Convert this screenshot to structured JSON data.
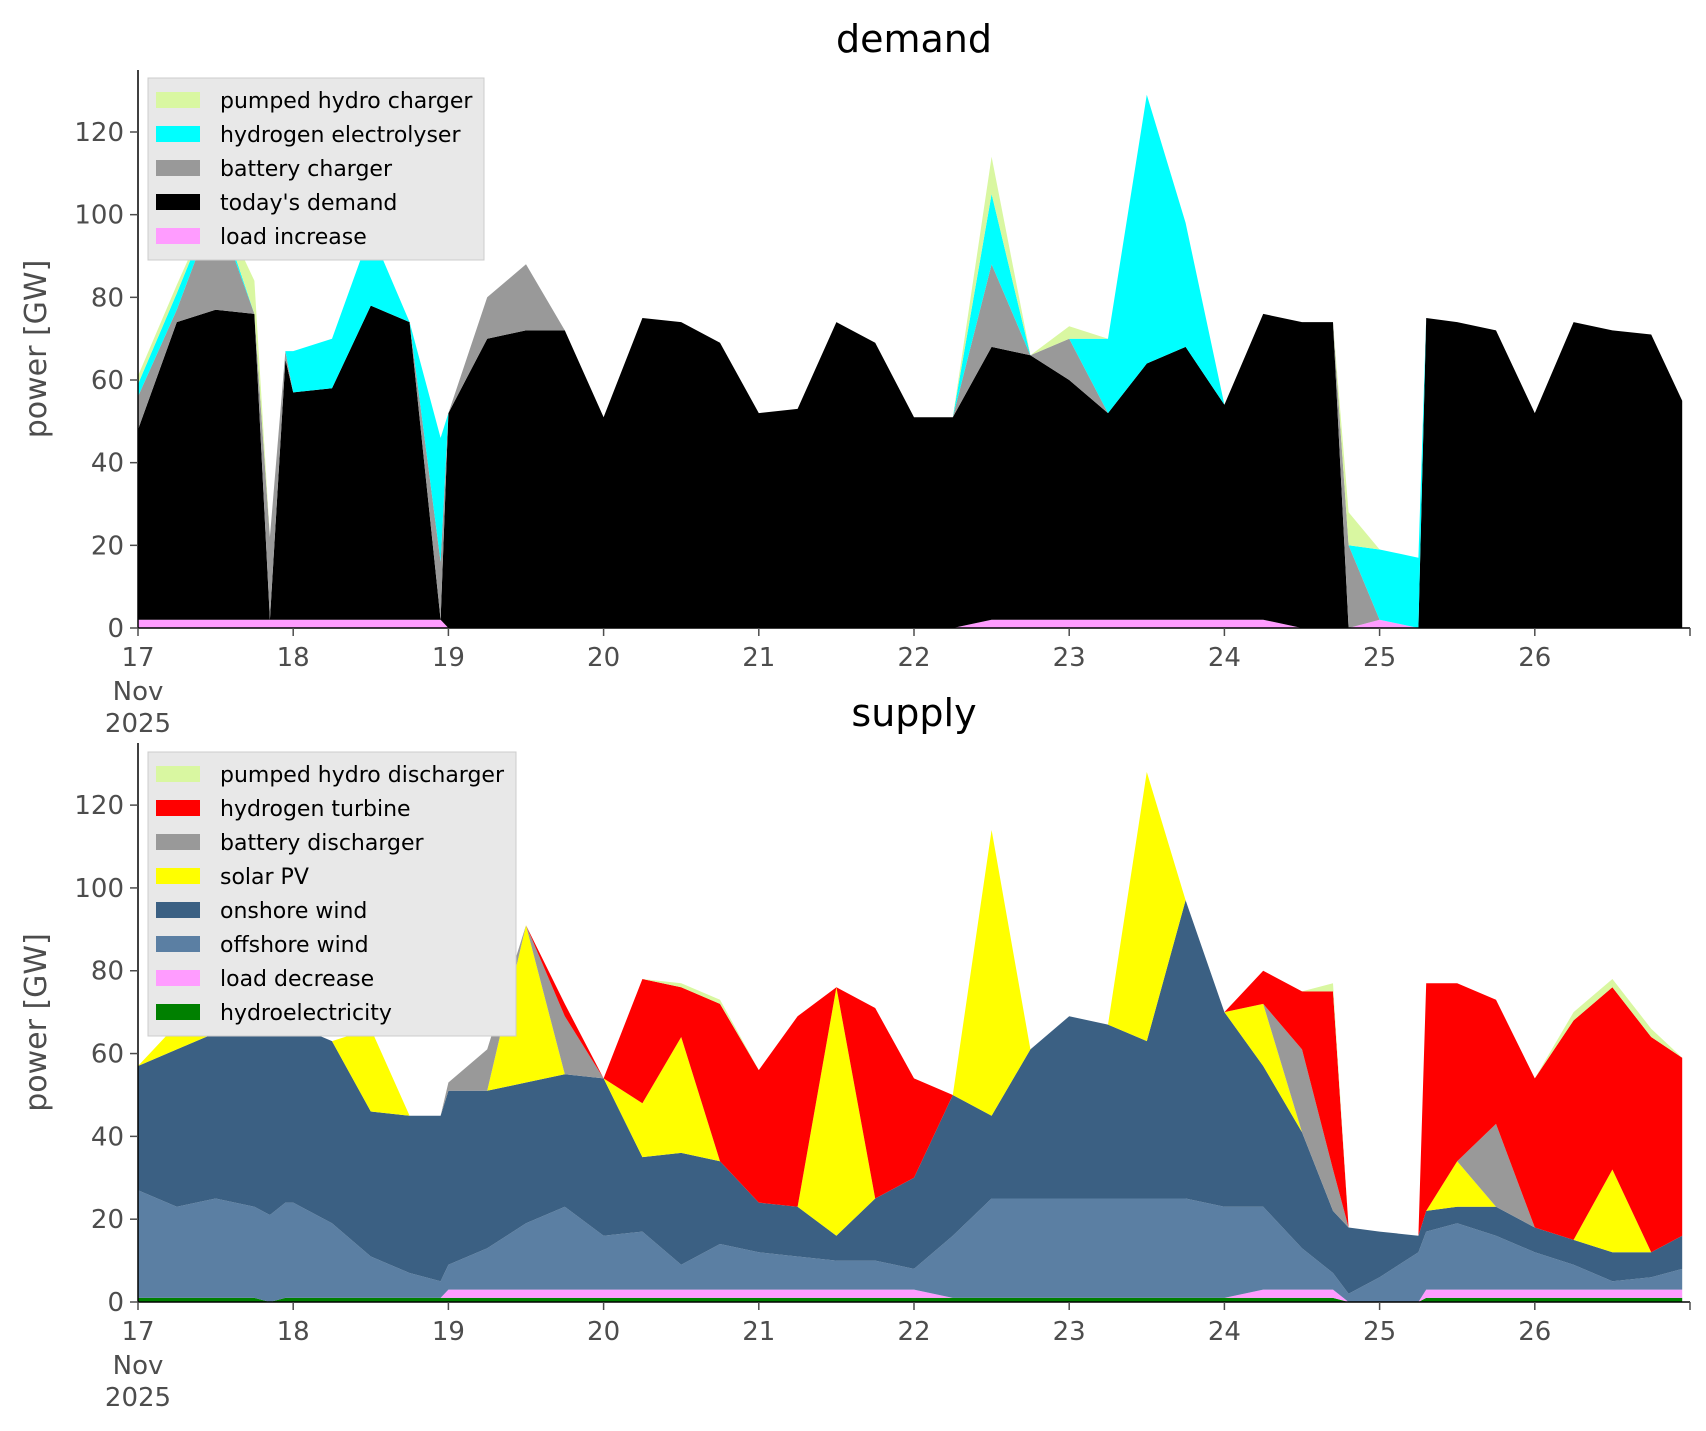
{
  "chart_data": [
    {
      "type": "area",
      "title": "demand",
      "xlabel": "",
      "ylabel": "power [GW]",
      "ylim": [
        0,
        135
      ],
      "yticks": [
        0,
        20,
        40,
        60,
        80,
        100,
        120
      ],
      "xlim": [
        17,
        27
      ],
      "xticks": [
        "17",
        "18",
        "19",
        "20",
        "21",
        "22",
        "23",
        "24",
        "25",
        "26"
      ],
      "xtick_sublabels": [
        "Nov",
        "2025"
      ],
      "legend_position": "upper-left",
      "grid": false,
      "stacked": true,
      "x": [
        17,
        17.25,
        17.5,
        17.75,
        17.85,
        17.95,
        18,
        18.25,
        18.5,
        18.75,
        18.95,
        19,
        19.25,
        19.5,
        19.75,
        20,
        20.25,
        20.5,
        20.75,
        21,
        21.25,
        21.5,
        21.75,
        22,
        22.25,
        22.5,
        22.75,
        23,
        23.25,
        23.5,
        23.75,
        24,
        24.25,
        24.5,
        24.7,
        24.8,
        25,
        25.25,
        25.3,
        25.5,
        25.75,
        26,
        26.25,
        26.5,
        26.75,
        26.95
      ],
      "series": [
        {
          "name": "load increase",
          "color": "#ff9cff",
          "values": [
            2,
            2,
            2,
            2,
            2,
            2,
            2,
            2,
            2,
            2,
            2,
            0,
            0,
            0,
            0,
            0,
            0,
            0,
            0,
            0,
            0,
            0,
            0,
            0,
            0,
            2,
            2,
            2,
            2,
            2,
            2,
            2,
            2,
            0,
            0,
            0,
            2,
            0,
            0,
            0,
            0,
            0,
            0,
            0,
            0,
            0
          ]
        },
        {
          "name": "today's demand",
          "color": "#000000",
          "values": [
            46,
            72,
            75,
            74,
            0,
            63,
            55,
            56,
            76,
            72,
            0,
            52,
            70,
            72,
            72,
            51,
            75,
            74,
            69,
            52,
            53,
            74,
            69,
            51,
            51,
            66,
            64,
            58,
            50,
            62,
            66,
            52,
            74,
            74,
            74,
            0,
            0,
            0,
            75,
            74,
            72,
            52,
            74,
            72,
            71,
            55
          ]
        },
        {
          "name": "battery charger",
          "color": "#999999",
          "values": [
            8,
            3,
            25,
            0,
            20,
            2,
            0,
            0,
            0,
            0,
            14,
            0,
            10,
            16,
            0,
            0,
            0,
            0,
            0,
            0,
            0,
            0,
            0,
            0,
            0,
            20,
            0,
            10,
            0,
            0,
            0,
            0,
            0,
            0,
            0,
            20,
            0,
            0,
            0,
            0,
            0,
            0,
            0,
            0,
            0,
            0
          ]
        },
        {
          "name": "hydrogen electrolyser",
          "color": "#00ffff",
          "values": [
            3,
            4,
            2,
            0,
            0,
            0,
            10,
            12,
            18,
            0,
            30,
            0,
            0,
            0,
            0,
            0,
            0,
            0,
            0,
            0,
            0,
            0,
            0,
            0,
            0,
            17,
            0,
            0,
            18,
            65,
            30,
            0,
            0,
            0,
            0,
            0,
            17,
            17,
            0,
            0,
            0,
            0,
            0,
            0,
            0,
            0
          ]
        },
        {
          "name": "pumped hydro charger",
          "color": "#d9f7a1",
          "values": [
            2,
            2,
            0,
            8,
            0,
            0,
            0,
            0,
            0,
            0,
            0,
            0,
            0,
            0,
            0,
            0,
            0,
            0,
            0,
            0,
            0,
            0,
            0,
            0,
            0,
            9,
            0,
            3,
            0,
            0,
            0,
            0,
            0,
            0,
            0,
            8,
            0,
            0,
            0,
            0,
            0,
            0,
            0,
            0,
            0,
            0
          ]
        }
      ],
      "legend": [
        "pumped hydro charger",
        "hydrogen electrolyser",
        "battery charger",
        "today's demand",
        "load increase"
      ]
    },
    {
      "type": "area",
      "title": "supply",
      "xlabel": "",
      "ylabel": "power [GW]",
      "ylim": [
        0,
        135
      ],
      "yticks": [
        0,
        20,
        40,
        60,
        80,
        100,
        120
      ],
      "xlim": [
        17,
        27
      ],
      "xticks": [
        "17",
        "18",
        "19",
        "20",
        "21",
        "22",
        "23",
        "24",
        "25",
        "26"
      ],
      "xtick_sublabels": [
        "Nov",
        "2025"
      ],
      "legend_position": "upper-left",
      "grid": false,
      "stacked": true,
      "x": [
        17,
        17.25,
        17.5,
        17.75,
        17.85,
        17.95,
        18,
        18.25,
        18.5,
        18.75,
        18.95,
        19,
        19.25,
        19.5,
        19.75,
        20,
        20.25,
        20.5,
        20.75,
        21,
        21.25,
        21.5,
        21.75,
        22,
        22.25,
        22.5,
        22.75,
        23,
        23.25,
        23.5,
        23.75,
        24,
        24.25,
        24.5,
        24.7,
        24.8,
        25,
        25.25,
        25.3,
        25.5,
        25.75,
        26,
        26.25,
        26.5,
        26.75,
        26.95
      ],
      "series": [
        {
          "name": "hydroelectricity",
          "color": "#008000",
          "values": [
            1,
            1,
            1,
            1,
            0,
            1,
            1,
            1,
            1,
            1,
            1,
            1,
            1,
            1,
            1,
            1,
            1,
            1,
            1,
            1,
            1,
            1,
            1,
            1,
            1,
            1,
            1,
            1,
            1,
            1,
            1,
            1,
            1,
            1,
            1,
            0,
            0,
            0,
            1,
            1,
            1,
            1,
            1,
            1,
            1,
            1
          ]
        },
        {
          "name": "load decrease",
          "color": "#ff9cff",
          "values": [
            0,
            0,
            0,
            0,
            0,
            0,
            0,
            0,
            0,
            0,
            0,
            2,
            2,
            2,
            2,
            2,
            2,
            2,
            2,
            2,
            2,
            2,
            2,
            2,
            0,
            0,
            0,
            0,
            0,
            0,
            0,
            0,
            2,
            2,
            2,
            0,
            0,
            0,
            2,
            2,
            2,
            2,
            2,
            2,
            2,
            2
          ]
        },
        {
          "name": "offshore wind",
          "color": "#5b7fa3",
          "values": [
            26,
            22,
            24,
            22,
            21,
            23,
            23,
            18,
            10,
            6,
            4,
            6,
            10,
            16,
            20,
            13,
            14,
            6,
            11,
            9,
            8,
            7,
            7,
            5,
            15,
            24,
            24,
            24,
            24,
            24,
            24,
            22,
            20,
            10,
            4,
            2,
            6,
            12,
            14,
            16,
            13,
            9,
            6,
            2,
            3,
            5
          ]
        },
        {
          "name": "onshore wind",
          "color": "#3b6083",
          "values": [
            30,
            38,
            40,
            43,
            44,
            43,
            43,
            44,
            35,
            38,
            40,
            42,
            38,
            34,
            32,
            38,
            18,
            27,
            20,
            12,
            12,
            6,
            15,
            22,
            34,
            20,
            36,
            44,
            42,
            38,
            72,
            47,
            34,
            28,
            15,
            16,
            11,
            4,
            5,
            4,
            7,
            6,
            6,
            7,
            6,
            8
          ]
        },
        {
          "name": "solar PV",
          "color": "#ffff00",
          "values": [
            0,
            6,
            38,
            0,
            0,
            0,
            0,
            0,
            20,
            0,
            0,
            0,
            0,
            38,
            0,
            0,
            13,
            28,
            0,
            0,
            0,
            60,
            0,
            0,
            0,
            69,
            0,
            0,
            0,
            65,
            0,
            0,
            15,
            0,
            0,
            0,
            0,
            0,
            0,
            11,
            0,
            0,
            0,
            20,
            0,
            0
          ]
        },
        {
          "name": "battery discharger",
          "color": "#999999",
          "values": [
            0,
            0,
            0,
            0,
            0,
            0,
            0,
            0,
            0,
            0,
            0,
            2,
            10,
            0,
            14,
            0,
            0,
            0,
            0,
            0,
            0,
            0,
            0,
            0,
            0,
            0,
            0,
            0,
            0,
            0,
            0,
            0,
            0,
            20,
            10,
            0,
            0,
            0,
            0,
            0,
            20,
            0,
            0,
            0,
            0,
            0
          ]
        },
        {
          "name": "hydrogen turbine",
          "color": "#ff0000",
          "values": [
            0,
            0,
            0,
            0,
            0,
            0,
            0,
            0,
            0,
            0,
            0,
            0,
            0,
            0,
            3,
            0,
            30,
            12,
            38,
            32,
            46,
            0,
            46,
            24,
            0,
            0,
            0,
            0,
            0,
            0,
            0,
            0,
            8,
            14,
            43,
            0,
            0,
            0,
            55,
            43,
            30,
            36,
            53,
            44,
            52,
            43
          ]
        },
        {
          "name": "pumped hydro discharger",
          "color": "#d9f7a1",
          "values": [
            0,
            0,
            0,
            0,
            0,
            0,
            0,
            0,
            0,
            0,
            0,
            0,
            0,
            0,
            0,
            0,
            0,
            1,
            1,
            0,
            0,
            0,
            0,
            0,
            0,
            0,
            0,
            0,
            0,
            0,
            0,
            0,
            0,
            0,
            2,
            0,
            0,
            0,
            0,
            0,
            0,
            0,
            2,
            2,
            2,
            0
          ]
        }
      ],
      "legend": [
        "pumped hydro discharger",
        "hydrogen turbine",
        "battery discharger",
        "solar PV",
        "onshore wind",
        "offshore wind",
        "load decrease",
        "hydroelectricity"
      ]
    }
  ]
}
